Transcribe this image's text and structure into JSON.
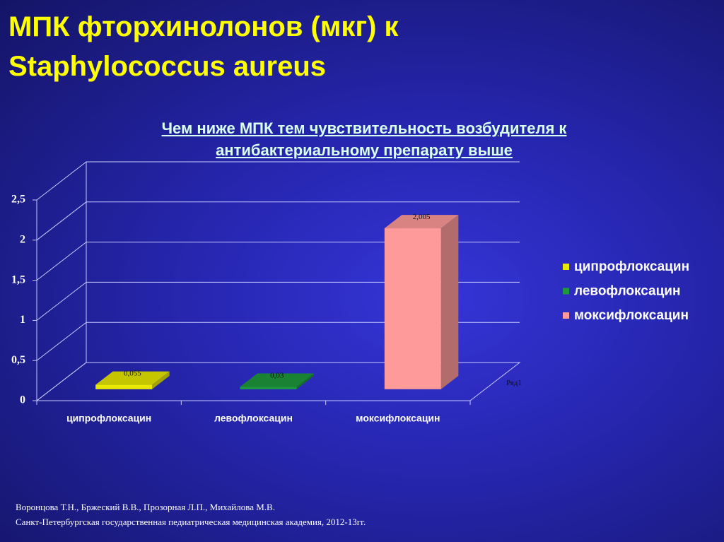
{
  "title": "МПК фторхинолонов (мкг) к Staphylococcus aureus",
  "chart_data": {
    "type": "bar3d",
    "subtitle": "Чем ниже МПК тем чувствительность возбудителя к антибактериальному  препарату выше",
    "categories": [
      "ципрофлоксацин",
      "левофлоксацин",
      "моксифлоксацин"
    ],
    "series": [
      {
        "name": "Ряд1",
        "values": [
          0.055,
          0.03,
          2.005
        ],
        "value_labels": [
          "0,055",
          "0,03",
          "2,005"
        ],
        "colors": [
          "#e8e800",
          "#1e9a3c",
          "#ff9a9a"
        ]
      }
    ],
    "ylim": [
      0,
      2.5
    ],
    "yticks": [
      0,
      {
        "value": 0.5,
        "label": "0,5"
      },
      1,
      {
        "value": 1.5,
        "label": "1,5"
      },
      2,
      {
        "value": 2.5,
        "label": "2,5"
      }
    ],
    "grid": true,
    "legend": "right"
  },
  "footer": {
    "lines": [
      "Воронцова Т.Н., Бржеский В.В., Прозорная Л.П., Михайлова М.В.",
      "Санкт-Петербургская государственная педиатрическая медицинская академия, 2012-13гг."
    ]
  }
}
